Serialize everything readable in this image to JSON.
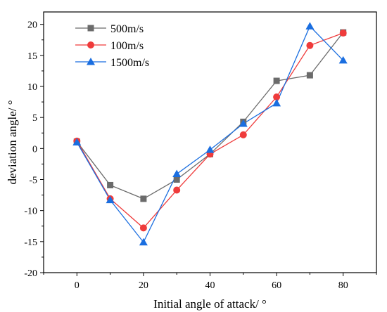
{
  "chart_data": {
    "type": "line",
    "title": "",
    "xlabel": "Initial angle of attack/ °",
    "ylabel": "deviation angle/ °",
    "xlim": [
      -10,
      90
    ],
    "ylim": [
      -20,
      22
    ],
    "xticks": [
      0,
      20,
      40,
      60,
      80
    ],
    "yticks": [
      -20,
      -15,
      -10,
      -5,
      0,
      5,
      10,
      15,
      20
    ],
    "xtick_labels": [
      "0",
      "20",
      "40",
      "60",
      "80"
    ],
    "ytick_labels": [
      "-20",
      "-15",
      "-10",
      "-5",
      "0",
      "5",
      "10",
      "15",
      "20"
    ],
    "grid": false,
    "legend_position": "top-left",
    "x": [
      0,
      10,
      20,
      30,
      40,
      50,
      60,
      70,
      80
    ],
    "series": [
      {
        "name": "500m/s",
        "marker": "square",
        "color": "#6b6b6b",
        "values": [
          1.1,
          -5.9,
          -8.1,
          -5.0,
          -0.9,
          4.3,
          10.9,
          11.8,
          18.7
        ]
      },
      {
        "name": "100m/s",
        "marker": "circle",
        "color": "#ef3b3b",
        "values": [
          1.2,
          -8.1,
          -12.8,
          -6.7,
          -0.9,
          2.2,
          8.3,
          16.6,
          18.6
        ]
      },
      {
        "name": "1500m/s",
        "marker": "triangle",
        "color": "#1a6ee0",
        "values": [
          1.0,
          -8.3,
          -15.1,
          -4.1,
          -0.2,
          4.0,
          7.3,
          19.7,
          14.2
        ]
      }
    ]
  }
}
